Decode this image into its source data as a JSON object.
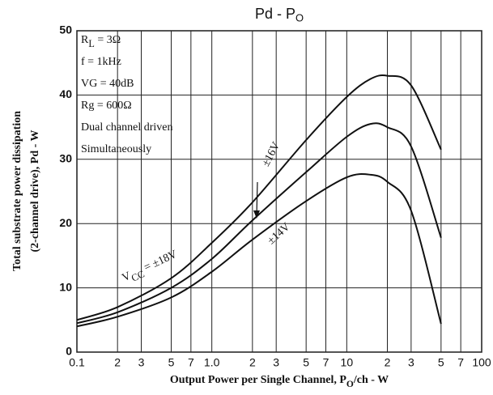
{
  "chart_data": {
    "type": "line",
    "title": [
      "Pd  -  P",
      "O"
    ],
    "x_label": [
      "Output Power per Single Channel, P",
      "O",
      "/ch - W"
    ],
    "y_label": [
      "Total substrate power dissipation",
      "(2-channel drive), Pd - W"
    ],
    "conditions": [
      [
        "R",
        "L",
        " = 3Ω"
      ],
      [
        "f = 1kHz"
      ],
      [
        "VG = 40dB"
      ],
      [
        "Rg = 600Ω"
      ],
      [
        "Dual channel driven"
      ],
      [
        "Simultaneously"
      ]
    ],
    "vcc_prefix": [
      "V",
      "CC",
      " = "
    ],
    "log_x": true,
    "grid": true,
    "xlim": [
      0.1,
      100
    ],
    "ylim": [
      0,
      50
    ],
    "xticks": [
      0.1,
      {
        "value": 0.2,
        "label": "2"
      },
      {
        "value": 0.3,
        "label": "3"
      },
      {
        "value": 0.5,
        "label": "5"
      },
      {
        "value": 0.7,
        "label": "7"
      },
      {
        "value": 1,
        "label": "1.0"
      },
      {
        "value": 2,
        "label": "2"
      },
      {
        "value": 3,
        "label": "3"
      },
      {
        "value": 5,
        "label": "5"
      },
      {
        "value": 7,
        "label": "7"
      },
      10,
      {
        "value": 20,
        "label": "2"
      },
      {
        "value": 30,
        "label": "3"
      },
      {
        "value": 50,
        "label": "5"
      },
      {
        "value": 70,
        "label": "7"
      },
      100
    ],
    "yticks": [
      0,
      10,
      20,
      30,
      40,
      50
    ],
    "x": [
      0.1,
      0.2,
      0.5,
      1,
      2,
      5,
      10,
      15,
      20,
      30,
      50
    ],
    "series": [
      {
        "name": "±18V",
        "color": "#111111",
        "values": [
          5,
          7,
          11.5,
          17,
          23.3,
          33,
          39.7,
          42.5,
          43,
          41.5,
          31.5
        ]
      },
      {
        "name": "±16V",
        "color": "#111111",
        "values": [
          4.5,
          6.2,
          10,
          14.5,
          20.5,
          28,
          33.5,
          35.5,
          35,
          32,
          17.8
        ]
      },
      {
        "name": "±14V",
        "color": "#111111",
        "values": [
          4,
          5.5,
          8.5,
          12.5,
          17.5,
          23.5,
          27.2,
          27.6,
          26.5,
          22,
          4.4
        ]
      }
    ]
  }
}
